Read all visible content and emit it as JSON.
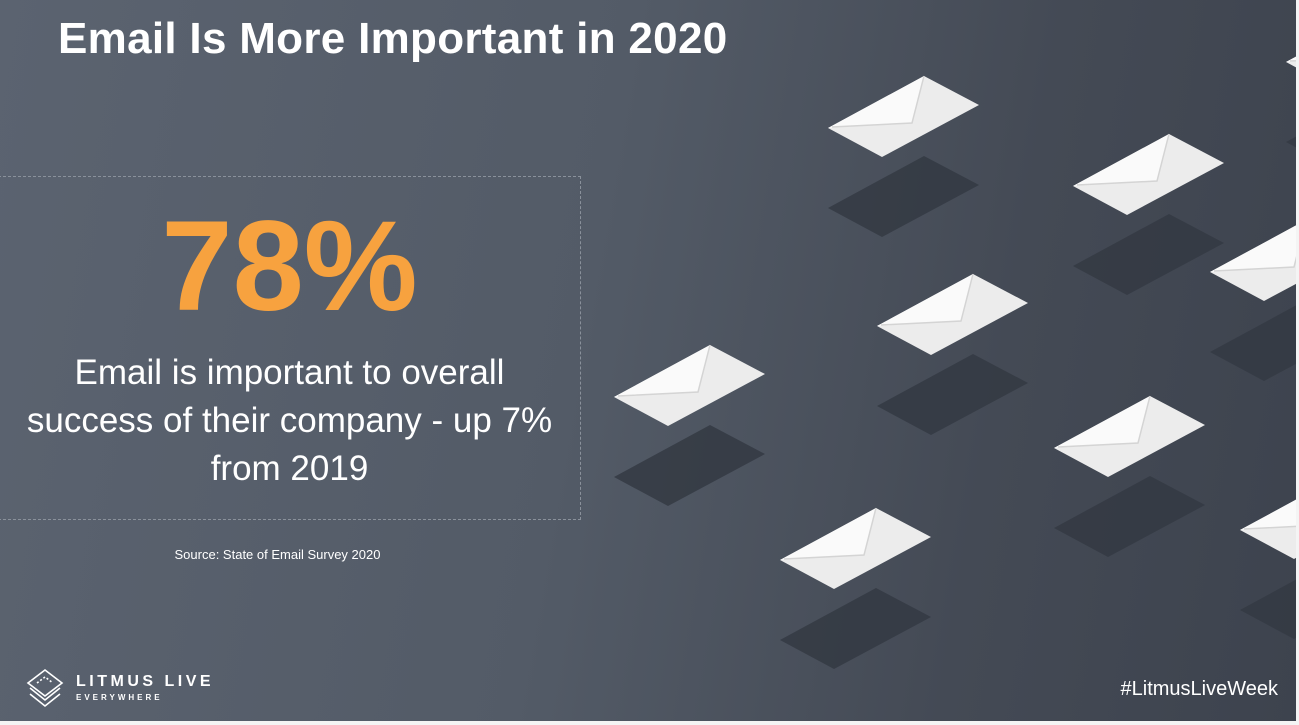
{
  "slide": {
    "title": "Email Is More Important in 2020",
    "stat": {
      "value": "78%",
      "description": "Email is important to overall success of their company - up 7% from 2019",
      "accent_color": "#f7a23f"
    },
    "source": "Source: State of Email Survey 2020",
    "logo": {
      "name": "LITMUS LIVE",
      "tagline": "EVERYWHERE",
      "icon": "layered-diamond-icon"
    },
    "hashtag": "#LitmusLiveWeek",
    "decoration_icon": "envelope-icon"
  }
}
